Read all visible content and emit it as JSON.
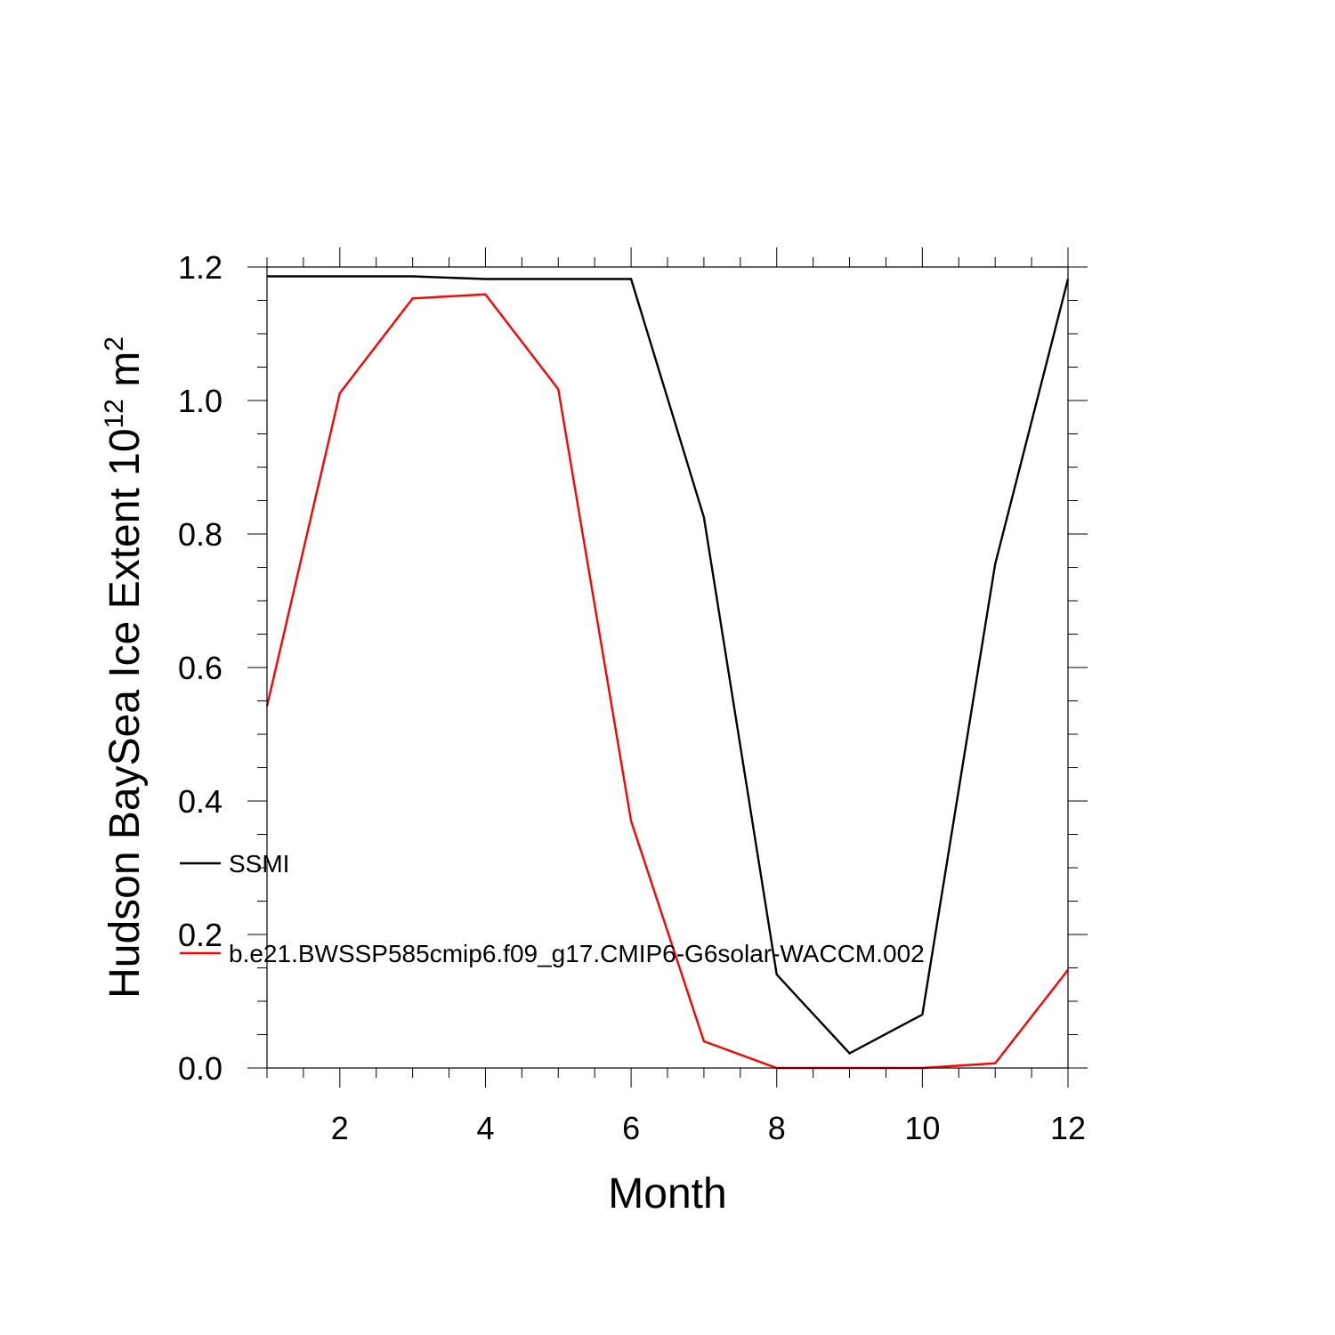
{
  "chart_data": {
    "type": "line",
    "xlabel": "Month",
    "ylabel": {
      "main": "Hudson BaySea Ice Extent 10",
      "exponent": "12",
      "unit": " m",
      "unit_exponent": "2"
    },
    "xlim": [
      1,
      12
    ],
    "ylim": [
      0,
      1.2
    ],
    "xticks": [
      2,
      4,
      6,
      8,
      10,
      12
    ],
    "xtick_labels": [
      "2",
      "4",
      "6",
      "8",
      "10",
      "12"
    ],
    "yticks": [
      0,
      0.2,
      0.4,
      0.6,
      0.8,
      1.0,
      1.2
    ],
    "ytick_labels": [
      "0.0",
      "0.2",
      "0.4",
      "0.6",
      "0.8",
      "1.0",
      "1.2"
    ],
    "grid": false,
    "legend_position": "left-inside",
    "x": [
      1,
      2,
      3,
      4,
      5,
      6,
      7,
      8,
      9,
      10,
      11,
      12
    ],
    "series": [
      {
        "name": "SSMI",
        "color": "#000000",
        "values": [
          1.186,
          1.186,
          1.186,
          1.182,
          1.182,
          1.182,
          0.825,
          0.14,
          0.022,
          0.08,
          0.755,
          1.182
        ]
      },
      {
        "name": "b.e21.BWSSP585cmip6.f09_g17.CMIP6-G6solar-WACCM.002",
        "color": "#ff0000",
        "values": [
          0.542,
          1.011,
          1.153,
          1.159,
          1.017,
          0.37,
          0.04,
          0.0,
          0.0,
          0.0,
          0.007,
          0.147
        ]
      }
    ]
  }
}
